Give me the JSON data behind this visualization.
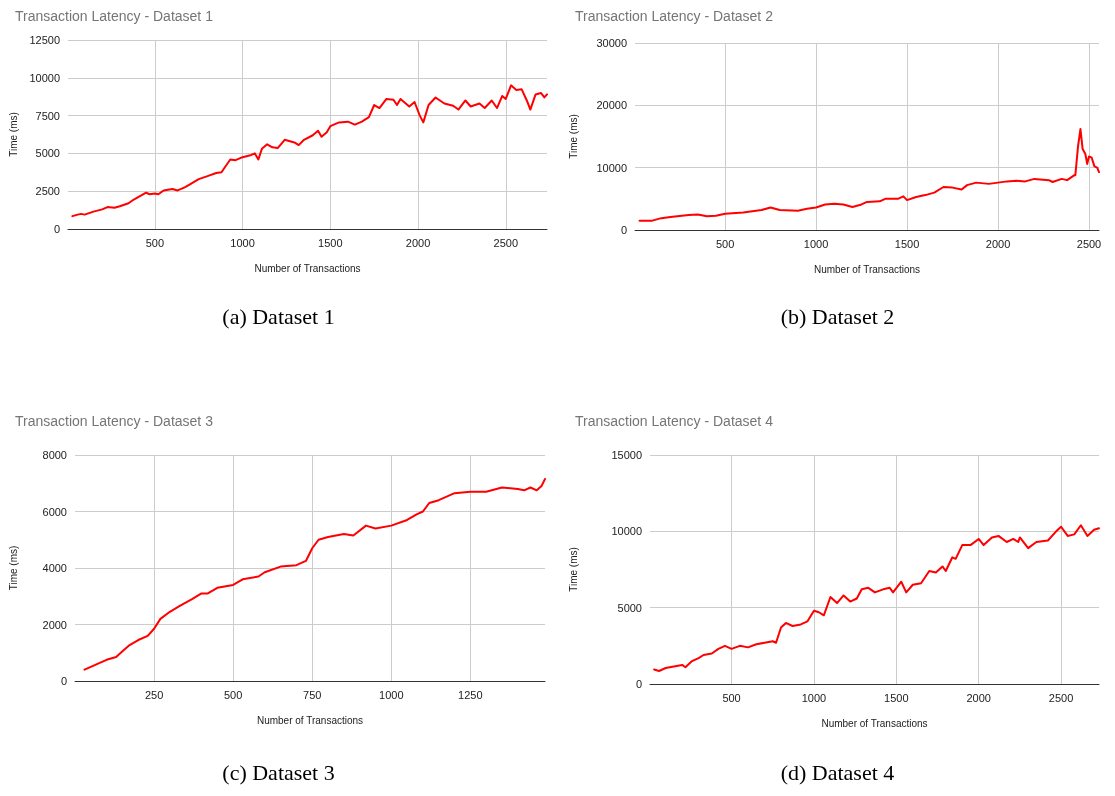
{
  "chart_data": [
    {
      "type": "line",
      "title": "Transaction Latency - Dataset 1",
      "xlabel": "Number of Transactions",
      "ylabel": "Time (ms)",
      "annotations": [
        "(a) Dataset 1"
      ],
      "grid": true,
      "marker": "none",
      "line_style": "solid",
      "xlim": [
        5,
        2735
      ],
      "xticks": [
        500,
        1000,
        1500,
        2000,
        2500
      ],
      "ylim": [
        0,
        12500
      ],
      "yticks": [
        0,
        2500,
        5000,
        7500,
        10000,
        12500
      ],
      "series": [
        {
          "color": "#ff0000",
          "x": [
            30,
            60,
            80,
            100,
            150,
            200,
            230,
            270,
            300,
            350,
            380,
            420,
            450,
            470,
            500,
            520,
            550,
            600,
            630,
            670,
            700,
            750,
            800,
            850,
            880,
            900,
            930,
            960,
            1000,
            1050,
            1070,
            1090,
            1110,
            1140,
            1170,
            1200,
            1240,
            1270,
            1300,
            1320,
            1350,
            1400,
            1430,
            1450,
            1480,
            1500,
            1550,
            1600,
            1640,
            1680,
            1720,
            1750,
            1780,
            1820,
            1860,
            1880,
            1900,
            1950,
            1980,
            2010,
            2030,
            2060,
            2100,
            2150,
            2200,
            2230,
            2270,
            2300,
            2350,
            2380,
            2420,
            2450,
            2480,
            2500,
            2530,
            2560,
            2590,
            2620,
            2640,
            2670,
            2700,
            2720,
            2735
          ],
          "values": [
            850,
            950,
            1000,
            950,
            1150,
            1300,
            1450,
            1400,
            1500,
            1700,
            1950,
            2200,
            2400,
            2300,
            2350,
            2300,
            2550,
            2650,
            2550,
            2750,
            2950,
            3300,
            3500,
            3700,
            3750,
            4100,
            4600,
            4550,
            4750,
            4900,
            5000,
            4600,
            5300,
            5600,
            5400,
            5350,
            5900,
            5800,
            5700,
            5550,
            5900,
            6200,
            6500,
            6100,
            6400,
            6800,
            7050,
            7100,
            6900,
            7100,
            7400,
            8200,
            8000,
            8600,
            8550,
            8200,
            8600,
            8100,
            8400,
            7500,
            7050,
            8200,
            8700,
            8300,
            8150,
            7900,
            8500,
            8100,
            8300,
            8000,
            8500,
            8000,
            8800,
            8600,
            9500,
            9200,
            9250,
            8500,
            7900,
            8900,
            9000,
            8700,
            8900
          ]
        }
      ]
    },
    {
      "type": "line",
      "title": "Transaction Latency - Dataset 2",
      "xlabel": "Number of Transactions",
      "ylabel": "Time (ms)",
      "annotations": [
        "(b) Dataset 2"
      ],
      "grid": true,
      "marker": "none",
      "line_style": "solid",
      "xlim": [
        5,
        2555
      ],
      "xticks": [
        500,
        1000,
        1500,
        2000,
        2500
      ],
      "ylim": [
        0,
        30000
      ],
      "yticks": [
        0,
        10000,
        20000,
        30000
      ],
      "series": [
        {
          "color": "#ff0000",
          "x": [
            30,
            100,
            150,
            200,
            300,
            350,
            400,
            450,
            500,
            600,
            700,
            750,
            800,
            900,
            950,
            1000,
            1050,
            1100,
            1150,
            1200,
            1250,
            1280,
            1350,
            1380,
            1450,
            1480,
            1500,
            1550,
            1600,
            1650,
            1700,
            1750,
            1800,
            1830,
            1880,
            1950,
            2000,
            2050,
            2100,
            2150,
            2200,
            2280,
            2300,
            2350,
            2380,
            2420,
            2425,
            2440,
            2453,
            2465,
            2480,
            2490,
            2500,
            2515,
            2530,
            2545,
            2555
          ],
          "values": [
            1500,
            1500,
            1900,
            2100,
            2400,
            2500,
            2200,
            2300,
            2600,
            2800,
            3200,
            3600,
            3200,
            3100,
            3400,
            3600,
            4100,
            4200,
            4100,
            3700,
            4100,
            4500,
            4600,
            5000,
            5000,
            5400,
            4800,
            5300,
            5600,
            6000,
            6900,
            6800,
            6500,
            7200,
            7600,
            7400,
            7600,
            7800,
            7900,
            7800,
            8200,
            8000,
            7700,
            8200,
            8000,
            8800,
            8800,
            13500,
            16200,
            13000,
            12200,
            10600,
            11800,
            11600,
            10200,
            10000,
            9300
          ]
        }
      ]
    },
    {
      "type": "line",
      "title": "Transaction Latency - Dataset 3",
      "xlabel": "Number of Transactions",
      "ylabel": "Time (ms)",
      "annotations": [
        "(c) Dataset 3"
      ],
      "grid": true,
      "marker": "none",
      "line_style": "solid",
      "xlim": [
        0,
        1486
      ],
      "xticks": [
        250,
        500,
        750,
        1000,
        1250
      ],
      "ylim": [
        0,
        8000
      ],
      "yticks": [
        0,
        2000,
        4000,
        6000,
        8000
      ],
      "series": [
        {
          "color": "#ff0000",
          "x": [
            30,
            50,
            80,
            100,
            130,
            150,
            170,
            200,
            230,
            250,
            270,
            300,
            330,
            370,
            400,
            420,
            450,
            500,
            530,
            580,
            600,
            650,
            700,
            730,
            750,
            770,
            800,
            850,
            880,
            920,
            950,
            1000,
            1050,
            1080,
            1100,
            1120,
            1150,
            1200,
            1250,
            1300,
            1350,
            1400,
            1420,
            1440,
            1460,
            1475,
            1486
          ],
          "values": [
            400,
            500,
            650,
            750,
            850,
            1050,
            1250,
            1450,
            1600,
            1850,
            2200,
            2450,
            2650,
            2900,
            3100,
            3100,
            3300,
            3400,
            3600,
            3700,
            3850,
            4050,
            4100,
            4250,
            4700,
            5000,
            5100,
            5200,
            5150,
            5500,
            5400,
            5500,
            5700,
            5900,
            6000,
            6300,
            6400,
            6650,
            6700,
            6700,
            6850,
            6800,
            6750,
            6850,
            6750,
            6900,
            7150
          ]
        }
      ]
    },
    {
      "type": "line",
      "title": "Transaction Latency - Dataset 4",
      "xlabel": "Number of Transactions",
      "ylabel": "Time (ms)",
      "annotations": [
        "(d) Dataset 4"
      ],
      "grid": true,
      "marker": "none",
      "line_style": "solid",
      "xlim": [
        5,
        2730
      ],
      "xticks": [
        500,
        1000,
        1500,
        2000,
        2500
      ],
      "ylim": [
        0,
        15000
      ],
      "yticks": [
        0,
        5000,
        10000,
        15000
      ],
      "series": [
        {
          "color": "#ff0000",
          "x": [
            30,
            60,
            100,
            150,
            200,
            220,
            260,
            300,
            330,
            380,
            420,
            460,
            500,
            550,
            600,
            650,
            700,
            750,
            770,
            800,
            830,
            870,
            920,
            960,
            1000,
            1030,
            1060,
            1100,
            1140,
            1180,
            1220,
            1260,
            1290,
            1330,
            1370,
            1420,
            1460,
            1480,
            1530,
            1560,
            1600,
            1650,
            1700,
            1740,
            1780,
            1800,
            1840,
            1860,
            1900,
            1950,
            2000,
            2030,
            2080,
            2120,
            2170,
            2210,
            2240,
            2250,
            2300,
            2350,
            2420,
            2470,
            2500,
            2540,
            2580,
            2620,
            2660,
            2700,
            2730
          ],
          "values": [
            950,
            850,
            1050,
            1150,
            1250,
            1100,
            1500,
            1700,
            1900,
            2000,
            2300,
            2500,
            2300,
            2500,
            2400,
            2600,
            2700,
            2800,
            2700,
            3700,
            4000,
            3800,
            3900,
            4100,
            4800,
            4700,
            4500,
            5700,
            5300,
            5800,
            5400,
            5600,
            6200,
            6300,
            6000,
            6200,
            6300,
            6000,
            6700,
            6000,
            6500,
            6600,
            7400,
            7300,
            7700,
            7400,
            8300,
            8200,
            9100,
            9100,
            9500,
            9100,
            9600,
            9700,
            9300,
            9500,
            9300,
            9600,
            8900,
            9300,
            9400,
            10000,
            10300,
            9700,
            9800,
            10400,
            9700,
            10100,
            10200
          ]
        }
      ]
    }
  ]
}
